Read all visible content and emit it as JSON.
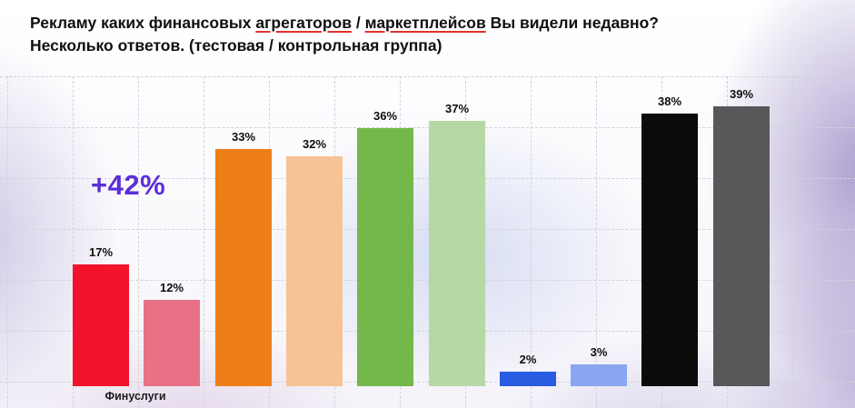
{
  "title": {
    "line1_segments": [
      {
        "text": "Рекламу каких финансовых ",
        "underline": false
      },
      {
        "text": "агрегаторов",
        "underline": true
      },
      {
        "text": " / ",
        "underline": false
      },
      {
        "text": "маркетплейсов",
        "underline": true
      },
      {
        "text": " Вы видели недавно?",
        "underline": false
      }
    ],
    "line2": "Несколько ответов. (тестовая / контрольная группа)"
  },
  "annotation": {
    "text": "+42%",
    "color": "#5b2fd6"
  },
  "chart_data": {
    "type": "bar",
    "title": "Рекламу каких финансовых агрегаторов / маркетплейсов Вы видели недавно? Несколько ответов. (тестовая / контрольная группа)",
    "unit": "%",
    "ylim": [
      0,
      40
    ],
    "grid": "dashed",
    "legend_position": "none",
    "baseline_label": "Финуслуги",
    "bars": [
      {
        "label": "17%",
        "value": 17,
        "color": "#f2122b",
        "group": "Финуслуги"
      },
      {
        "label": "12%",
        "value": 12,
        "color": "#e97185",
        "group": "Финуслуги"
      },
      {
        "label": "33%",
        "value": 33,
        "color": "#ee7e17",
        "group": ""
      },
      {
        "label": "32%",
        "value": 32,
        "color": "#f6c394",
        "group": ""
      },
      {
        "label": "36%",
        "value": 36,
        "color": "#74b74b",
        "group": ""
      },
      {
        "label": "37%",
        "value": 37,
        "color": "#b5d8a5",
        "group": ""
      },
      {
        "label": "2%",
        "value": 2,
        "color": "#2a5ce2",
        "group": ""
      },
      {
        "label": "3%",
        "value": 3,
        "color": "#8aa6f0",
        "group": ""
      },
      {
        "label": "38%",
        "value": 38,
        "color": "#0b0b0b",
        "group": ""
      },
      {
        "label": "39%",
        "value": 39,
        "color": "#58585a",
        "group": ""
      }
    ]
  }
}
